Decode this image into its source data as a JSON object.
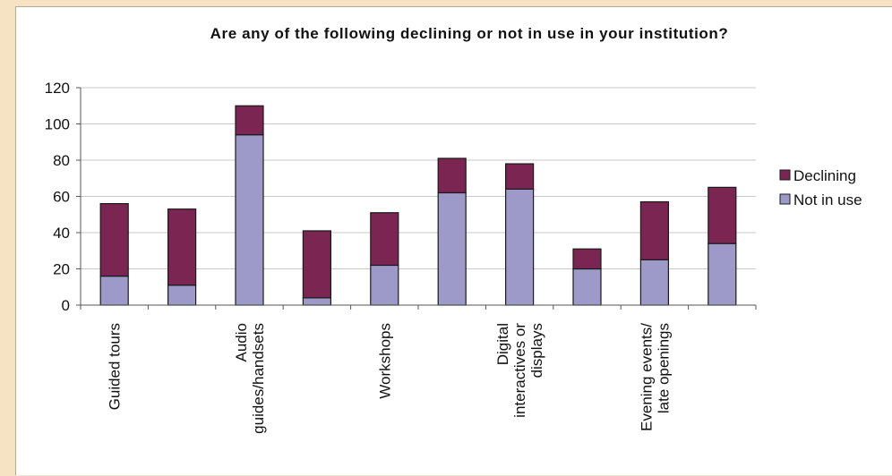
{
  "colors": {
    "page_background": "#f5e3c4",
    "plot_background": "#ffffff",
    "declining": "#7b2552",
    "not_in_use": "#9d9ac9",
    "gridline": "#c8c8c8",
    "axis": "#555555"
  },
  "chart_data": {
    "type": "bar",
    "stacked": true,
    "title": "Are any of the following declining or not in use in your institution?",
    "xlabel": "",
    "ylabel": "",
    "ylim": [
      0,
      120
    ],
    "yticks": [
      0,
      20,
      40,
      60,
      80,
      100,
      120
    ],
    "grid": true,
    "legend_position": "right",
    "categories": [
      [
        "Guided tours"
      ],
      [],
      [
        "Audio",
        "guides/handsets"
      ],
      [],
      [
        "Workshops"
      ],
      [],
      [
        "Digital",
        "interactives or",
        "displays"
      ],
      [],
      [
        "Evening events/",
        "late openings"
      ],
      []
    ],
    "series": [
      {
        "name": "Not in use",
        "color": "#9d9ac9",
        "values": [
          16,
          11,
          94,
          4,
          22,
          62,
          64,
          20,
          25,
          34
        ]
      },
      {
        "name": "Declining",
        "color": "#7b2552",
        "values": [
          40,
          42,
          16,
          37,
          29,
          19,
          14,
          11,
          32,
          31
        ]
      }
    ],
    "legend_order": [
      "Declining",
      "Not in use"
    ]
  }
}
